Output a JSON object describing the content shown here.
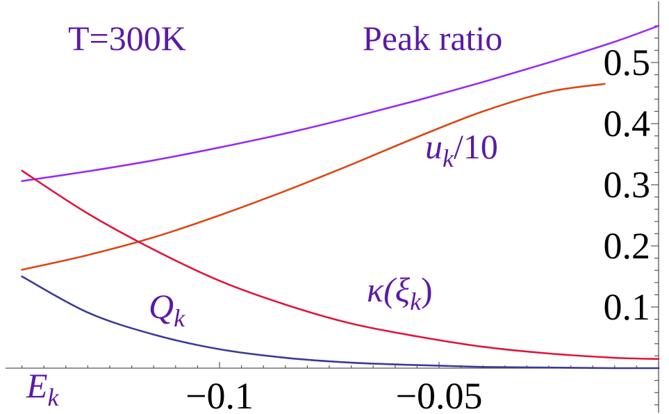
{
  "chart_data": {
    "type": "line",
    "title": "",
    "xlabel": "E_k",
    "ylabel": "",
    "xlim": [
      -0.1484,
      0.0
    ],
    "ylim": [
      0.0,
      0.575
    ],
    "x_ticks": [
      -0.1,
      -0.05
    ],
    "x_tick_labels": [
      "−0.1",
      "−0.05"
    ],
    "y_ticks": [
      0.1,
      0.2,
      0.3,
      0.4,
      0.5
    ],
    "y_tick_labels": [
      "0.1",
      "0.2",
      "0.3",
      "0.4",
      "0.5"
    ],
    "grid": false,
    "series": [
      {
        "name": "Peak ratio",
        "color": "#9b2bf0",
        "x": [
          -0.145,
          -0.13,
          -0.115,
          -0.1,
          -0.085,
          -0.07,
          -0.055,
          -0.04,
          -0.025,
          -0.01,
          0.0
        ],
        "y": [
          0.306,
          0.322,
          0.34,
          0.361,
          0.384,
          0.41,
          0.438,
          0.468,
          0.5,
          0.534,
          0.56
        ]
      },
      {
        "name": "u_k/10",
        "color": "#dc4610",
        "x": [
          -0.145,
          -0.13,
          -0.115,
          -0.1,
          -0.085,
          -0.07,
          -0.055,
          -0.04,
          -0.025,
          -0.0123
        ],
        "y": [
          0.161,
          0.185,
          0.214,
          0.25,
          0.29,
          0.333,
          0.378,
          0.42,
          0.452,
          0.465
        ]
      },
      {
        "name": "κ(ξ_k)",
        "color": "#e0143c",
        "x": [
          -0.145,
          -0.13,
          -0.115,
          -0.1,
          -0.085,
          -0.07,
          -0.055,
          -0.04,
          -0.025,
          -0.01,
          0.0
        ],
        "y": [
          0.323,
          0.253,
          0.194,
          0.143,
          0.104,
          0.073,
          0.052,
          0.035,
          0.024,
          0.017,
          0.015
        ]
      },
      {
        "name": "Q_k",
        "color": "#3a3a98",
        "x": [
          -0.145,
          -0.13,
          -0.115,
          -0.1,
          -0.085,
          -0.07,
          -0.055,
          -0.04,
          -0.025,
          -0.01,
          0.0
        ],
        "y": [
          0.15,
          0.091,
          0.055,
          0.031,
          0.017,
          0.009,
          0.005,
          0.002,
          0.001,
          0.0,
          0.0
        ]
      }
    ],
    "annotations": {
      "temperature": "T=300K",
      "peak_ratio": "Peak ratio",
      "u_base": "u",
      "u_sub": "k",
      "u_tail": "/10",
      "kappa_head": "κ(ξ",
      "kappa_sub": "k",
      "kappa_tail": ")",
      "q_base": "Q",
      "q_sub": "k",
      "e_base": "E",
      "e_sub": "k"
    },
    "annotation_color": "#5a1aa8"
  }
}
